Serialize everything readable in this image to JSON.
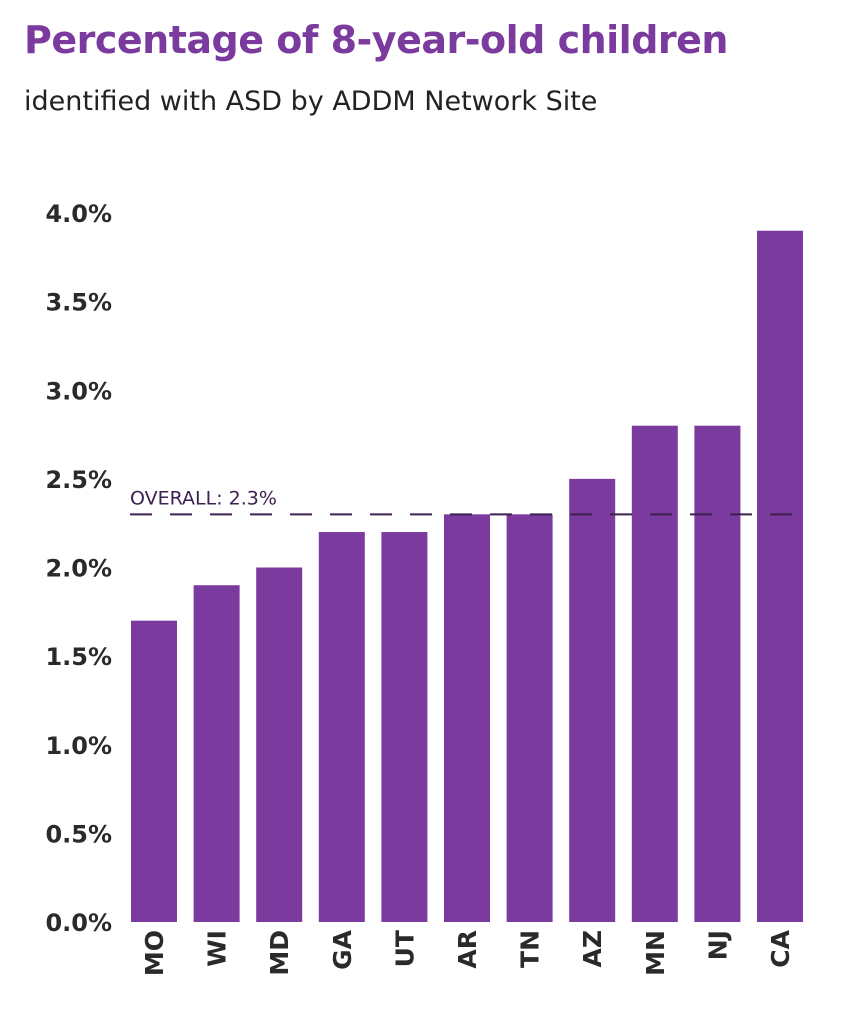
{
  "chart_data": {
    "type": "bar",
    "title": "Percentage of 8-year-old children",
    "subtitle": "identified with ASD by ADDM Network Site",
    "xlabel": "",
    "ylabel": "",
    "categories": [
      "MO",
      "WI",
      "MD",
      "GA",
      "UT",
      "AR",
      "TN",
      "AZ",
      "MN",
      "NJ",
      "CA"
    ],
    "values": [
      1.7,
      1.9,
      2.0,
      2.2,
      2.2,
      2.3,
      2.3,
      2.5,
      2.8,
      2.8,
      3.9
    ],
    "value_unit": "%",
    "ylim": [
      0,
      4.0
    ],
    "yticks": [
      "0.0%",
      "0.5%",
      "1.0%",
      "1.5%",
      "2.0%",
      "2.5%",
      "3.0%",
      "3.5%",
      "4.0%"
    ],
    "grid": false,
    "reference_line": {
      "label": "OVERALL: 2.3%",
      "value": 2.3,
      "style": "dashed"
    },
    "colors": {
      "bar": "#7B3A9E",
      "title": "#7B3A9E",
      "reference_line": "#3D2150"
    }
  }
}
